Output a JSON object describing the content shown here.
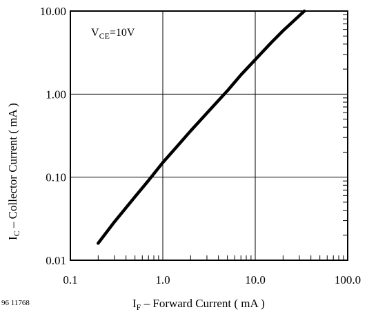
{
  "chart_data": {
    "type": "line",
    "x_scale": "log",
    "y_scale": "log",
    "xlim": [
      0.1,
      100.0
    ],
    "ylim": [
      0.01,
      10.0
    ],
    "x_ticks": [
      0.1,
      1.0,
      10.0,
      100.0
    ],
    "y_ticks": [
      0.01,
      0.1,
      1.0,
      10.0
    ],
    "x_tick_labels": [
      "0.1",
      "1.0",
      "10.0",
      "100.0"
    ],
    "y_tick_labels": [
      "0.01",
      "0.10",
      "1.00",
      "10.00"
    ],
    "xlabel": {
      "main": "I",
      "sub": "F",
      "rest": " – Forward Current ( mA )"
    },
    "ylabel": {
      "main": "I",
      "sub": "C",
      "rest": " – Collector Current ( mA )"
    },
    "annotation": {
      "main": "V",
      "sub": "CE",
      "rest": "=10V"
    },
    "figure_code": "96 11768",
    "grid": true,
    "legend": "none",
    "line_color": "#000000",
    "series": [
      {
        "x": [
          0.2,
          0.3,
          0.5,
          0.7,
          1.0,
          1.5,
          2.0,
          3.0,
          5.0,
          7.0,
          10.0,
          15.0,
          20.0,
          34.0
        ],
        "y": [
          0.016,
          0.029,
          0.058,
          0.091,
          0.15,
          0.25,
          0.36,
          0.59,
          1.1,
          1.7,
          2.6,
          4.2,
          5.8,
          10.0
        ]
      }
    ]
  }
}
